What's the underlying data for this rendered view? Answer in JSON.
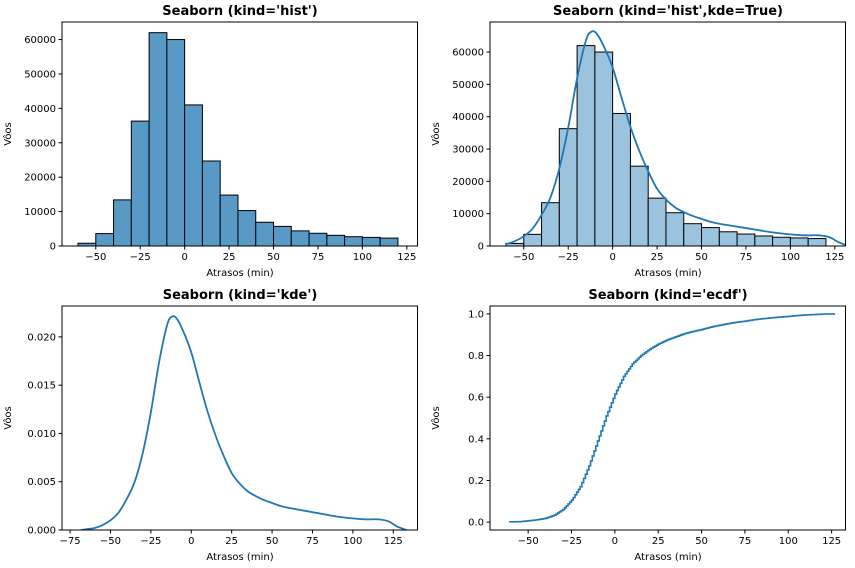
{
  "figure": {
    "background": "#ffffff"
  },
  "chart_data": [
    {
      "type": "bar",
      "title": "Seaborn (kind='hist')",
      "xlabel": "Atrasos (min)",
      "ylabel": "Vôos",
      "xlim": [
        -69,
        131
      ],
      "ylim": [
        0,
        65100
      ],
      "grid": false,
      "legend": "none",
      "xticks": [
        {
          "v": -50,
          "label": "−50"
        },
        {
          "v": -25,
          "label": "−25"
        },
        {
          "v": 0,
          "label": "0"
        },
        {
          "v": 25,
          "label": "25"
        },
        {
          "v": 50,
          "label": "50"
        },
        {
          "v": 75,
          "label": "75"
        },
        {
          "v": 100,
          "label": "100"
        },
        {
          "v": 125,
          "label": "125"
        }
      ],
      "yticks": [
        {
          "v": 0,
          "label": "0"
        },
        {
          "v": 10000,
          "label": "10000"
        },
        {
          "v": 20000,
          "label": "20000"
        },
        {
          "v": 30000,
          "label": "30000"
        },
        {
          "v": 40000,
          "label": "40000"
        },
        {
          "v": 50000,
          "label": "50000"
        },
        {
          "v": 60000,
          "label": "60000"
        }
      ],
      "hist": {
        "bin_start": -60,
        "bin_width": 10,
        "counts": [
          800,
          3600,
          13400,
          36300,
          62000,
          60000,
          41000,
          24700,
          14800,
          10300,
          6900,
          5700,
          4400,
          3700,
          3100,
          2700,
          2500,
          2300
        ]
      },
      "bar_fill": "#5899C6",
      "bar_edge": "#000000"
    },
    {
      "type": "bar+line",
      "title": "Seaborn (kind='hist',kde=True)",
      "xlabel": "Atrasos (min)",
      "ylabel": "Vôos",
      "xlim": [
        -69,
        131
      ],
      "ylim": [
        0,
        69300
      ],
      "grid": false,
      "legend": "none",
      "xticks": [
        {
          "v": -50,
          "label": "−50"
        },
        {
          "v": -25,
          "label": "−25"
        },
        {
          "v": 0,
          "label": "0"
        },
        {
          "v": 25,
          "label": "25"
        },
        {
          "v": 50,
          "label": "50"
        },
        {
          "v": 75,
          "label": "75"
        },
        {
          "v": 100,
          "label": "100"
        },
        {
          "v": 125,
          "label": "125"
        }
      ],
      "yticks": [
        {
          "v": 0,
          "label": "0"
        },
        {
          "v": 10000,
          "label": "10000"
        },
        {
          "v": 20000,
          "label": "20000"
        },
        {
          "v": 30000,
          "label": "30000"
        },
        {
          "v": 40000,
          "label": "40000"
        },
        {
          "v": 50000,
          "label": "50000"
        },
        {
          "v": 60000,
          "label": "60000"
        }
      ],
      "hist": {
        "bin_start": -60,
        "bin_width": 10,
        "counts": [
          800,
          3600,
          13400,
          36300,
          62000,
          60000,
          41000,
          24700,
          14800,
          10300,
          6900,
          5700,
          4400,
          3700,
          3100,
          2700,
          2500,
          2300
        ]
      },
      "bar_fill": "#9CC3DE",
      "bar_edge": "#000000",
      "line_color": "#1F77B4",
      "kde": {
        "points": [
          [
            -60,
            600
          ],
          [
            -55,
            1500
          ],
          [
            -50,
            3000
          ],
          [
            -45,
            5400
          ],
          [
            -40,
            9600
          ],
          [
            -35,
            15000
          ],
          [
            -30,
            24000
          ],
          [
            -25,
            36600
          ],
          [
            -20,
            51900
          ],
          [
            -15,
            63600
          ],
          [
            -12,
            66300
          ],
          [
            -9,
            65700
          ],
          [
            -5,
            61800
          ],
          [
            0,
            55200
          ],
          [
            5,
            45900
          ],
          [
            10,
            36900
          ],
          [
            15,
            29400
          ],
          [
            20,
            23100
          ],
          [
            25,
            17700
          ],
          [
            30,
            14400
          ],
          [
            35,
            12000
          ],
          [
            40,
            10500
          ],
          [
            45,
            9300
          ],
          [
            50,
            8400
          ],
          [
            55,
            7500
          ],
          [
            60,
            6900
          ],
          [
            70,
            6000
          ],
          [
            80,
            5100
          ],
          [
            90,
            4200
          ],
          [
            100,
            3600
          ],
          [
            108,
            3300
          ],
          [
            116,
            3300
          ],
          [
            122,
            2700
          ],
          [
            127,
            1200
          ],
          [
            131,
            300
          ]
        ]
      }
    },
    {
      "type": "line",
      "title": "Seaborn (kind='kde')",
      "xlabel": "Atrasos (min)",
      "ylabel": "Vôos",
      "xlim": [
        -80,
        140
      ],
      "ylim": [
        0,
        0.0232
      ],
      "grid": false,
      "legend": "none",
      "xticks": [
        {
          "v": -75,
          "label": "−75"
        },
        {
          "v": -50,
          "label": "−50"
        },
        {
          "v": -25,
          "label": "−25"
        },
        {
          "v": 0,
          "label": "0"
        },
        {
          "v": 25,
          "label": "25"
        },
        {
          "v": 50,
          "label": "50"
        },
        {
          "v": 75,
          "label": "75"
        },
        {
          "v": 100,
          "label": "100"
        },
        {
          "v": 125,
          "label": "125"
        }
      ],
      "yticks": [
        {
          "v": 0.0,
          "label": "0.000"
        },
        {
          "v": 0.005,
          "label": "0.005"
        },
        {
          "v": 0.01,
          "label": "0.010"
        },
        {
          "v": 0.015,
          "label": "0.015"
        },
        {
          "v": 0.02,
          "label": "0.020"
        }
      ],
      "line_color": "#1F77B4",
      "kde": {
        "points": [
          [
            -68,
            0.0
          ],
          [
            -64,
            0.0001
          ],
          [
            -60,
            0.0002
          ],
          [
            -55,
            0.0005
          ],
          [
            -50,
            0.001
          ],
          [
            -45,
            0.0018
          ],
          [
            -40,
            0.0032
          ],
          [
            -35,
            0.005
          ],
          [
            -30,
            0.008
          ],
          [
            -25,
            0.0122
          ],
          [
            -20,
            0.0173
          ],
          [
            -15,
            0.0212
          ],
          [
            -12,
            0.0221
          ],
          [
            -9,
            0.0219
          ],
          [
            -5,
            0.0206
          ],
          [
            0,
            0.0184
          ],
          [
            5,
            0.0153
          ],
          [
            10,
            0.0123
          ],
          [
            15,
            0.0098
          ],
          [
            20,
            0.0077
          ],
          [
            25,
            0.0059
          ],
          [
            30,
            0.0048
          ],
          [
            35,
            0.004
          ],
          [
            40,
            0.0035
          ],
          [
            45,
            0.0031
          ],
          [
            50,
            0.0028
          ],
          [
            55,
            0.0025
          ],
          [
            60,
            0.0023
          ],
          [
            70,
            0.002
          ],
          [
            80,
            0.0017
          ],
          [
            90,
            0.0014
          ],
          [
            100,
            0.0012
          ],
          [
            108,
            0.0011
          ],
          [
            116,
            0.0011
          ],
          [
            122,
            0.0009
          ],
          [
            127,
            0.0004
          ],
          [
            133,
            0.0
          ]
        ]
      }
    },
    {
      "type": "ecdf",
      "title": "Seaborn (kind='ecdf')",
      "xlabel": "Atrasos (min)",
      "ylabel": "Vôos",
      "xlim": [
        -72,
        133
      ],
      "ylim": [
        -0.038,
        1.038
      ],
      "grid": false,
      "legend": "none",
      "xticks": [
        {
          "v": -50,
          "label": "−50"
        },
        {
          "v": -25,
          "label": "−25"
        },
        {
          "v": 0,
          "label": "0"
        },
        {
          "v": 25,
          "label": "25"
        },
        {
          "v": 50,
          "label": "50"
        },
        {
          "v": 75,
          "label": "75"
        },
        {
          "v": 100,
          "label": "100"
        },
        {
          "v": 125,
          "label": "125"
        }
      ],
      "yticks": [
        {
          "v": 0.0,
          "label": "0.0"
        },
        {
          "v": 0.2,
          "label": "0.2"
        },
        {
          "v": 0.4,
          "label": "0.4"
        },
        {
          "v": 0.6,
          "label": "0.6"
        },
        {
          "v": 0.8,
          "label": "0.8"
        },
        {
          "v": 1.0,
          "label": "1.0"
        }
      ],
      "line_color": "#1F77B4",
      "ecdf": {
        "points": [
          [
            -61,
            0.001
          ],
          [
            -55,
            0.002
          ],
          [
            -50,
            0.006
          ],
          [
            -45,
            0.011
          ],
          [
            -40,
            0.018
          ],
          [
            -35,
            0.033
          ],
          [
            -30,
            0.06
          ],
          [
            -25,
            0.105
          ],
          [
            -20,
            0.17
          ],
          [
            -15,
            0.27
          ],
          [
            -10,
            0.39
          ],
          [
            -5,
            0.51
          ],
          [
            0,
            0.615
          ],
          [
            5,
            0.7
          ],
          [
            10,
            0.76
          ],
          [
            15,
            0.8
          ],
          [
            20,
            0.83
          ],
          [
            25,
            0.855
          ],
          [
            30,
            0.875
          ],
          [
            35,
            0.89
          ],
          [
            40,
            0.905
          ],
          [
            45,
            0.916
          ],
          [
            50,
            0.925
          ],
          [
            55,
            0.936
          ],
          [
            60,
            0.945
          ],
          [
            65,
            0.953
          ],
          [
            70,
            0.96
          ],
          [
            75,
            0.965
          ],
          [
            80,
            0.972
          ],
          [
            85,
            0.977
          ],
          [
            90,
            0.981
          ],
          [
            95,
            0.985
          ],
          [
            100,
            0.988
          ],
          [
            105,
            0.992
          ],
          [
            110,
            0.995
          ],
          [
            115,
            0.997
          ],
          [
            120,
            0.999
          ],
          [
            124,
            1.0
          ],
          [
            127,
            1.0
          ]
        ]
      }
    }
  ]
}
